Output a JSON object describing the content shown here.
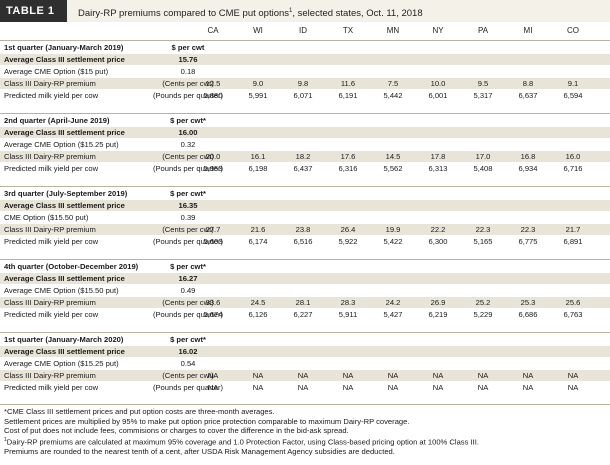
{
  "title": {
    "tag": "TABLE 1",
    "text_a": "Dairy-RP premiums compared to CME put options",
    "text_sup": "1",
    "text_b": ", selected states, Oct. 11, 2018"
  },
  "states": [
    "CA",
    "WI",
    "ID",
    "TX",
    "MN",
    "NY",
    "PA",
    "MI",
    "CO"
  ],
  "quarters": [
    {
      "heading": "1st quarter (January-March 2019)",
      "heading_unit": "$ per cwt",
      "settle_label": "Average Class III settlement price",
      "settle_value": "15.76",
      "option_label": "Average CME Option ($15 put)",
      "option_value": "0.18",
      "premium_label": "Class III Dairy-RP premium",
      "premium_unit": "(Cents per cwt)",
      "premiums": [
        "12.5",
        "9.0",
        "9.8",
        "11.6",
        "7.5",
        "10.0",
        "9.5",
        "8.8",
        "9.1"
      ],
      "yield_label": "Predicted milk yield per cow",
      "yield_unit": "(Pounds per quarter)",
      "yields": [
        "5,880",
        "5,991",
        "6,071",
        "6,191",
        "5,442",
        "6,001",
        "5,317",
        "6,637",
        "6,594"
      ]
    },
    {
      "heading": "2nd quarter (April-June 2019)",
      "heading_unit": "$ per cwt*",
      "settle_label": "Average Class III settlement price",
      "settle_value": "16.00",
      "option_label": "Average CME Option ($15.25 put)",
      "option_value": "0.32",
      "premium_label": "Class III Dairy-RP premium",
      "premium_unit": "(Cents per cwt)",
      "premiums": [
        "20.0",
        "16.1",
        "18.2",
        "17.6",
        "14.5",
        "17.8",
        "17.0",
        "16.8",
        "16.0"
      ],
      "yield_label": "Predicted milk yield per cow",
      "yield_unit": "(Pounds per quarter)",
      "yields": [
        "5,953",
        "6,198",
        "6,437",
        "6,316",
        "5,562",
        "6,313",
        "5,408",
        "6,934",
        "6,716"
      ]
    },
    {
      "heading": "3rd quarter (July-September 2019)",
      "heading_unit": "$ per cwt*",
      "settle_label": "Average Class III settlement price",
      "settle_value": "16.35",
      "option_label": "CME Option ($15.50 put)",
      "option_value": "0.39",
      "premium_label": "Class III Dairy-RP premium",
      "premium_unit": "(Cents per cwt)",
      "premiums": [
        "27.7",
        "21.6",
        "23.8",
        "26.4",
        "19.9",
        "22.2",
        "22.3",
        "22.3",
        "21.7"
      ],
      "yield_label": "Predicted milk yield per cow",
      "yield_unit": "(Pounds per quarter)",
      "yields": [
        "5,603",
        "6,174",
        "6,516",
        "5,922",
        "5,422",
        "6,300",
        "5,165",
        "6,775",
        "6,891"
      ]
    },
    {
      "heading": "4th quarter (October-December 2019)",
      "heading_unit": "$ per cwt*",
      "settle_label": "Average Class III settlement price",
      "settle_value": "16.27",
      "option_label": "Average CME Option ($15.50 put)",
      "option_value": "0.49",
      "premium_label": "Class III Dairy-RP premium",
      "premium_unit": "(Cents per cwt)",
      "premiums": [
        "33.6",
        "24.5",
        "28.1",
        "28.3",
        "24.2",
        "26.9",
        "25.2",
        "25.3",
        "25.6"
      ],
      "yield_label": "Predicted milk yield per cow",
      "yield_unit": "(Pounds per quarter)",
      "yields": [
        "5,674",
        "6,126",
        "6,227",
        "5,911",
        "5,427",
        "6,219",
        "5,229",
        "6,686",
        "6,763"
      ]
    },
    {
      "heading": "1st quarter (January-March 2020)",
      "heading_unit": "$ per cwt*",
      "settle_label": "Average Class III settlement price",
      "settle_value": "16.02",
      "option_label": "Average CME Option ($15.25 put)",
      "option_value": "0.54",
      "premium_label": "Class III Dairy-RP premium",
      "premium_unit": "(Cents per cwt)",
      "premiums": [
        "NA",
        "NA",
        "NA",
        "NA",
        "NA",
        "NA",
        "NA",
        "NA",
        "NA"
      ],
      "yield_label": "Predicted milk yield per cow",
      "yield_unit": "(Pounds per quarter)",
      "yields": [
        "NA",
        "NA",
        "NA",
        "NA",
        "NA",
        "NA",
        "NA",
        "NA",
        "NA"
      ]
    }
  ],
  "footnotes": {
    "line1": "*CME Class III settlement prices and put option costs are three-month averages.",
    "line2": "Settlement prices are multiplied by 95% to make put option price protection comparable to maximum Dairy-RP coverage.",
    "line3": "Cost of put does not include fees, commisions or charges to cover the difference in the bid-ask spread.",
    "line4_sup": "1",
    "line4": "Dairy-RP premiums are calculated at maximum 95% coverage and 1.0 Protection Factor, using Class-based pricing option at 100% Class III.",
    "line5": "Premiums are rounded to the nearest tenth of a cent, after USDA Risk Management Agency subsidies are deducted."
  },
  "colors": {
    "tag_bg": "#2f2f2f",
    "title_bg": "#f4f1e9",
    "row_shade": "#e8e4d8",
    "divider": "#b8b2a0"
  }
}
